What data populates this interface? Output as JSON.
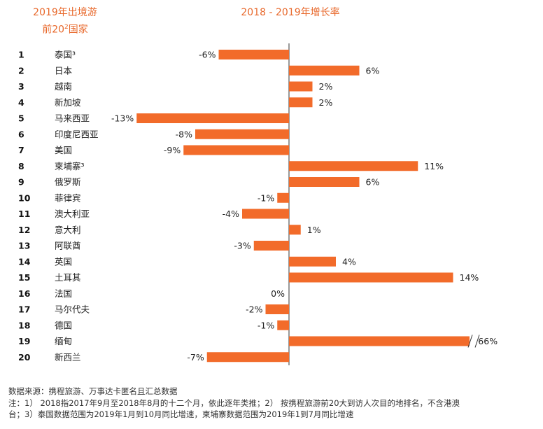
{
  "header": {
    "left_line1": "2019年出境游",
    "left_line2_prefix": "前20",
    "left_line2_sup": "2",
    "left_line2_suffix": "国家",
    "right": "2018 - 2019年增长率"
  },
  "chart_data": {
    "type": "bar",
    "orientation": "horizontal",
    "title": "2018 - 2019年增长率",
    "ranks": [
      "1",
      "2",
      "3",
      "4",
      "5",
      "6",
      "7",
      "8",
      "9",
      "10",
      "11",
      "12",
      "13",
      "14",
      "15",
      "16",
      "17",
      "18",
      "19",
      "20"
    ],
    "categories": [
      "泰国³",
      "日本",
      "越南",
      "新加坡",
      "马来西亚",
      "印度尼西亚",
      "美国",
      "柬埔寨³",
      "俄罗斯",
      "菲律宾",
      "澳大利亚",
      "意大利",
      "阿联酋",
      "英国",
      "土耳其",
      "法国",
      "马尔代夫",
      "德国",
      "缅甸",
      "新西兰"
    ],
    "values": [
      -6,
      6,
      2,
      2,
      -13,
      -8,
      -9,
      11,
      6,
      -1,
      -4,
      1,
      -3,
      4,
      14,
      0,
      -2,
      -1,
      66,
      -7
    ],
    "value_labels": [
      "-6%",
      "6%",
      "2%",
      "2%",
      "-13%",
      "-8%",
      "-9%",
      "11%",
      "6%",
      "-1%",
      "-4%",
      "1%",
      "-3%",
      "4%",
      "14%",
      "0%",
      "-2%",
      "-1%",
      "66%",
      "-7%"
    ],
    "axis_break": {
      "category": "缅甸",
      "note": "bar broken (axis break) before 66%"
    },
    "bar_color": "#f26b2a",
    "axis_color": "#333333"
  },
  "footer": {
    "line1": "数据来源：携程旅游、万事达卡匿名且汇总数据",
    "line2": "注：1）  2018指2017年9月至2018年8月的十二个月，依此逐年类推；2）  按携程旅游前20大到访人次目的地排名，不含港澳",
    "line3": "台；3）泰国数据范围为2019年1月到10月同比增速，柬埔寨数据范围为2019年1到7月同比增速"
  }
}
